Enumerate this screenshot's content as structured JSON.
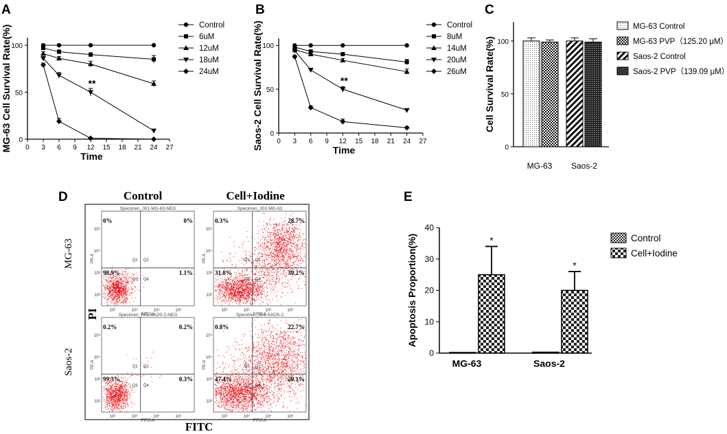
{
  "panel_letters": [
    "A",
    "B",
    "C",
    "D",
    "E"
  ],
  "chart_data": [
    {
      "id": "A",
      "type": "line",
      "ylabel": "MG-63 Cell Survival Rate(%)",
      "xlabel": "Time",
      "x": [
        3,
        6,
        12,
        24
      ],
      "xlim": [
        0,
        27
      ],
      "xticks": [
        0,
        3,
        6,
        9,
        12,
        15,
        18,
        21,
        24,
        27
      ],
      "ylim": [
        0,
        108
      ],
      "yticks": [
        0,
        50,
        100
      ],
      "series": [
        {
          "name": "Control",
          "marker": "circle",
          "values": [
            100,
            100,
            100,
            100
          ],
          "err": [
            0,
            0,
            0,
            0
          ]
        },
        {
          "name": "6uM",
          "marker": "square",
          "values": [
            97,
            93,
            90,
            85
          ],
          "err": [
            1,
            2,
            2,
            4
          ]
        },
        {
          "name": "12uM",
          "marker": "triangle-up",
          "values": [
            91,
            86,
            80,
            59
          ],
          "err": [
            2,
            2,
            3,
            3
          ]
        },
        {
          "name": "18uM",
          "marker": "triangle-down",
          "values": [
            86,
            68,
            50,
            9
          ],
          "err": [
            2,
            3,
            4,
            1
          ]
        },
        {
          "name": "24uM",
          "marker": "diamond",
          "values": [
            79,
            19,
            1,
            0
          ],
          "err": [
            2,
            3,
            0,
            0
          ]
        }
      ],
      "annotation": {
        "text": "**",
        "x": 12,
        "y": 56
      }
    },
    {
      "id": "B",
      "type": "line",
      "ylabel": "Saos-2 Cell Survival Rate(%)",
      "xlabel": "Time",
      "x": [
        3,
        6,
        12,
        24
      ],
      "xlim": [
        0,
        27
      ],
      "xticks": [
        0,
        3,
        6,
        9,
        12,
        15,
        18,
        21,
        24,
        27
      ],
      "ylim": [
        0,
        108
      ],
      "yticks": [
        0,
        50,
        100
      ],
      "series": [
        {
          "name": "Control",
          "marker": "circle",
          "values": [
            100,
            100,
            100,
            100
          ],
          "err": [
            0,
            0,
            0,
            0
          ]
        },
        {
          "name": "8uM",
          "marker": "square",
          "values": [
            98,
            93,
            90,
            81
          ],
          "err": [
            1,
            2,
            2,
            3
          ]
        },
        {
          "name": "14uM",
          "marker": "triangle-up",
          "values": [
            95,
            90,
            83,
            70
          ],
          "err": [
            1,
            2,
            2,
            3
          ]
        },
        {
          "name": "20uM",
          "marker": "triangle-down",
          "values": [
            94,
            72,
            50,
            26
          ],
          "err": [
            1,
            2,
            3,
            1
          ]
        },
        {
          "name": "26uM",
          "marker": "diamond",
          "values": [
            87,
            29,
            13,
            6
          ],
          "err": [
            2,
            2,
            3,
            1
          ]
        }
      ],
      "annotation": {
        "text": "**",
        "x": 12,
        "y": 56
      }
    },
    {
      "id": "C",
      "type": "bar",
      "ylabel": "Cell Survival Rate(%)",
      "categories": [
        "MG-63",
        "Saos-2"
      ],
      "ylim": [
        0,
        118
      ],
      "yticks": [
        0,
        50,
        100
      ],
      "series": [
        {
          "name": "MG-63 Control",
          "pattern": "dots",
          "values": [
            100,
            null
          ],
          "err": [
            3,
            null
          ]
        },
        {
          "name": "MG-63 PVP（125.20 μM）",
          "pattern": "check",
          "values": [
            99,
            null
          ],
          "err": [
            2,
            null
          ]
        },
        {
          "name": "Saos-2 Control",
          "pattern": "diag",
          "values": [
            null,
            100
          ],
          "err": [
            null,
            3
          ]
        },
        {
          "name": "Saos-2 PVP（139.09 μM）",
          "pattern": "dense",
          "values": [
            null,
            99
          ],
          "err": [
            null,
            3
          ]
        }
      ]
    },
    {
      "id": "D",
      "type": "scatter",
      "description": "flow cytometry quadrant plots",
      "col_labels": [
        "Control",
        "Cell+Iodine"
      ],
      "row_labels": [
        "MG-63",
        "Saos-2"
      ],
      "ylabel": "PI",
      "xlabel": "FITC",
      "axis_x": "FITC-A",
      "axis_y": "PE-A",
      "quadrants": [
        "Q1",
        "Q2",
        "Q3",
        "Q4"
      ],
      "plots": [
        {
          "title": "Specimen_001-MG-63-NEG",
          "q1": "0%",
          "q2": "0%",
          "q3": "98.9%",
          "q4": "1.1%"
        },
        {
          "title": "Specimen_001-MG-63",
          "q1": "0.3%",
          "q2": "28.7%",
          "q3": "31.8%",
          "q4": "39.2%"
        },
        {
          "title": "Specimen_001-SAOS-2-NEG",
          "q1": "0.2%",
          "q2": "0.2%",
          "q3": "99.3%",
          "q4": "0.3%"
        },
        {
          "title": "Specimen_001-SAOS-2",
          "q1": "0.8%",
          "q2": "22.7%",
          "q3": "47.4%",
          "q4": "29.1%"
        }
      ],
      "x_ticks": [
        "10²",
        "10³",
        "10⁴",
        "10⁵"
      ],
      "y_ticks": [
        "10²",
        "10³",
        "10⁴",
        "10⁵"
      ]
    },
    {
      "id": "E",
      "type": "bar",
      "ylabel": "Apoptosis Proportion(%)",
      "categories": [
        "MG-63",
        "Saos-2"
      ],
      "ylim": [
        0,
        40
      ],
      "yticks": [
        0,
        10,
        20,
        30,
        40
      ],
      "series": [
        {
          "name": "Control",
          "pattern": "check-small",
          "values": [
            0.2,
            0.3
          ],
          "err": [
            0,
            0
          ]
        },
        {
          "name": "Cell+Iodine",
          "pattern": "check-large",
          "values": [
            25,
            20
          ],
          "err": [
            9,
            6
          ]
        }
      ],
      "annotations": [
        "*",
        "*"
      ]
    }
  ]
}
